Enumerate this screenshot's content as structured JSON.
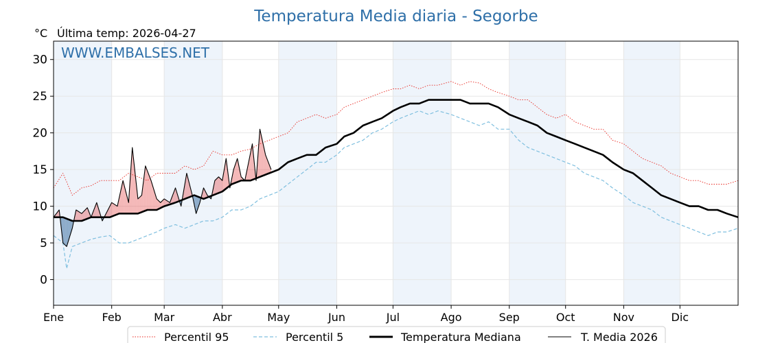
{
  "chart_data": {
    "type": "line",
    "title": "Temperatura Media diaria - Segorbe",
    "unit_label": "°C",
    "last_temp_label": "Última temp: 2026-04-27",
    "watermark": "WWW.EMBALSES.NET",
    "ylim": [
      -3.5,
      32.5
    ],
    "yticks": [
      0,
      5,
      10,
      15,
      20,
      25,
      30
    ],
    "xlim": [
      0,
      365
    ],
    "month_ticks": [
      {
        "label": "Ene",
        "day": 0
      },
      {
        "label": "Feb",
        "day": 31
      },
      {
        "label": "Mar",
        "day": 59
      },
      {
        "label": "Abr",
        "day": 90
      },
      {
        "label": "May",
        "day": 120
      },
      {
        "label": "Jun",
        "day": 151
      },
      {
        "label": "Jul",
        "day": 181
      },
      {
        "label": "Ago",
        "day": 212
      },
      {
        "label": "Sep",
        "day": 243
      },
      {
        "label": "Oct",
        "day": 273
      },
      {
        "label": "Nov",
        "day": 304
      },
      {
        "label": "Dic",
        "day": 334
      }
    ],
    "shaded_months": [
      [
        0,
        31
      ],
      [
        59,
        90
      ],
      [
        120,
        151
      ],
      [
        181,
        212
      ],
      [
        243,
        273
      ],
      [
        304,
        334
      ]
    ],
    "grid": true,
    "legend_position": "bottom",
    "colors": {
      "p95": "#e8261e",
      "p5": "#7fbfdf",
      "median": "#000000",
      "current": "#000000",
      "above": "#e65a5a",
      "below": "#5a86b0",
      "title": "#2e6fa8",
      "band": "#eef4fb"
    },
    "series": [
      {
        "key": "p95",
        "name": "Percentil 95",
        "style": "dotted",
        "x": [
          0,
          5,
          10,
          15,
          20,
          25,
          30,
          35,
          40,
          45,
          50,
          55,
          59,
          65,
          70,
          75,
          80,
          85,
          90,
          95,
          100,
          105,
          110,
          115,
          120,
          125,
          130,
          135,
          140,
          145,
          151,
          155,
          160,
          165,
          170,
          175,
          181,
          185,
          190,
          195,
          200,
          205,
          212,
          217,
          222,
          227,
          232,
          237,
          243,
          248,
          253,
          258,
          263,
          268,
          273,
          278,
          283,
          288,
          293,
          298,
          304,
          309,
          314,
          319,
          324,
          329,
          334,
          339,
          344,
          349,
          354,
          359,
          365
        ],
        "y": [
          12.5,
          14.5,
          11.5,
          12.5,
          12.8,
          13.5,
          13.5,
          13.5,
          14.5,
          14.0,
          13.5,
          14.5,
          14.5,
          14.5,
          15.5,
          15.0,
          15.5,
          17.5,
          17.0,
          17.0,
          17.5,
          17.8,
          18.5,
          19.0,
          19.5,
          20.0,
          21.5,
          22.0,
          22.5,
          22.0,
          22.5,
          23.5,
          24.0,
          24.5,
          25.0,
          25.5,
          26.0,
          26.0,
          26.5,
          26.0,
          26.5,
          26.5,
          27.0,
          26.5,
          27.0,
          26.8,
          26.0,
          25.5,
          25.0,
          24.5,
          24.5,
          23.5,
          22.5,
          22.0,
          22.5,
          21.5,
          21.0,
          20.5,
          20.5,
          19.0,
          18.5,
          17.5,
          16.5,
          16.0,
          15.5,
          14.5,
          14.0,
          13.5,
          13.5,
          13.0,
          13.0,
          13.0,
          13.5
        ]
      },
      {
        "key": "p5",
        "name": "Percentil 5",
        "style": "dashed",
        "x": [
          0,
          5,
          7,
          10,
          15,
          20,
          25,
          30,
          35,
          40,
          45,
          50,
          55,
          59,
          65,
          70,
          75,
          80,
          85,
          90,
          95,
          100,
          105,
          110,
          115,
          120,
          125,
          130,
          135,
          140,
          145,
          151,
          155,
          160,
          165,
          170,
          175,
          181,
          185,
          190,
          195,
          200,
          205,
          212,
          217,
          222,
          227,
          232,
          237,
          243,
          248,
          253,
          258,
          263,
          268,
          273,
          278,
          283,
          288,
          293,
          298,
          304,
          309,
          314,
          319,
          324,
          329,
          334,
          339,
          344,
          349,
          354,
          359,
          365
        ],
        "y": [
          6.0,
          5.0,
          1.5,
          4.5,
          5.0,
          5.5,
          5.8,
          6.0,
          5.0,
          5.0,
          5.5,
          6.0,
          6.5,
          7.0,
          7.5,
          7.0,
          7.5,
          8.0,
          8.0,
          8.5,
          9.5,
          9.5,
          10.0,
          11.0,
          11.5,
          12.0,
          13.0,
          14.0,
          15.0,
          16.0,
          16.0,
          17.0,
          18.0,
          18.5,
          19.0,
          20.0,
          20.5,
          21.5,
          22.0,
          22.5,
          23.0,
          22.5,
          23.0,
          22.5,
          22.0,
          21.5,
          21.0,
          21.5,
          20.5,
          20.5,
          19.0,
          18.0,
          17.5,
          17.0,
          16.5,
          16.0,
          15.5,
          14.5,
          14.0,
          13.5,
          12.5,
          11.5,
          10.5,
          10.0,
          9.5,
          8.5,
          8.0,
          7.5,
          7.0,
          6.5,
          6.0,
          6.5,
          6.5,
          7.0
        ]
      },
      {
        "key": "median",
        "name": "Temperatura Mediana",
        "style": "solid-thick",
        "x": [
          0,
          5,
          10,
          15,
          20,
          25,
          30,
          35,
          40,
          45,
          50,
          55,
          59,
          65,
          70,
          75,
          80,
          85,
          90,
          95,
          100,
          105,
          110,
          115,
          120,
          125,
          130,
          135,
          140,
          145,
          151,
          155,
          160,
          165,
          170,
          175,
          181,
          185,
          190,
          195,
          200,
          205,
          212,
          217,
          222,
          227,
          232,
          237,
          243,
          248,
          253,
          258,
          263,
          268,
          273,
          278,
          283,
          288,
          293,
          298,
          304,
          309,
          314,
          319,
          324,
          329,
          334,
          339,
          344,
          349,
          354,
          359,
          365
        ],
        "y": [
          8.5,
          8.5,
          8.0,
          8.0,
          8.5,
          8.5,
          8.5,
          9.0,
          9.0,
          9.0,
          9.5,
          9.5,
          10.0,
          10.5,
          11.0,
          11.5,
          11.0,
          11.5,
          12.0,
          13.0,
          13.5,
          13.5,
          14.0,
          14.5,
          15.0,
          16.0,
          16.5,
          17.0,
          17.0,
          18.0,
          18.5,
          19.5,
          20.0,
          21.0,
          21.5,
          22.0,
          23.0,
          23.5,
          24.0,
          24.0,
          24.5,
          24.5,
          24.5,
          24.5,
          24.0,
          24.0,
          24.0,
          23.5,
          22.5,
          22.0,
          21.5,
          21.0,
          20.0,
          19.5,
          19.0,
          18.5,
          18.0,
          17.5,
          17.0,
          16.0,
          15.0,
          14.5,
          13.5,
          12.5,
          11.5,
          11.0,
          10.5,
          10.0,
          10.0,
          9.5,
          9.5,
          9.0,
          8.5
        ]
      },
      {
        "key": "current",
        "name": "T. Media 2026",
        "style": "solid-thin",
        "x": [
          0,
          3,
          5,
          7,
          10,
          12,
          15,
          18,
          20,
          23,
          26,
          29,
          31,
          34,
          37,
          40,
          42,
          45,
          47,
          49,
          52,
          55,
          57,
          59,
          62,
          65,
          68,
          71,
          74,
          76,
          78,
          80,
          82,
          84,
          86,
          88,
          90,
          92,
          94,
          96,
          98,
          100,
          102,
          104,
          106,
          108,
          110,
          113,
          116
        ],
        "y": [
          8.5,
          9.5,
          5.0,
          4.5,
          7.0,
          9.5,
          9.0,
          9.8,
          8.5,
          10.5,
          8.0,
          9.5,
          10.5,
          10.0,
          13.5,
          10.5,
          18.0,
          11.0,
          11.5,
          15.5,
          13.5,
          11.0,
          10.5,
          11.0,
          10.5,
          12.5,
          10.0,
          14.5,
          11.5,
          9.0,
          10.5,
          12.5,
          11.5,
          11.0,
          13.5,
          14.0,
          13.5,
          16.5,
          12.5,
          15.0,
          16.5,
          14.0,
          13.5,
          16.0,
          18.5,
          13.5,
          20.5,
          17.0,
          15.0
        ]
      }
    ]
  }
}
